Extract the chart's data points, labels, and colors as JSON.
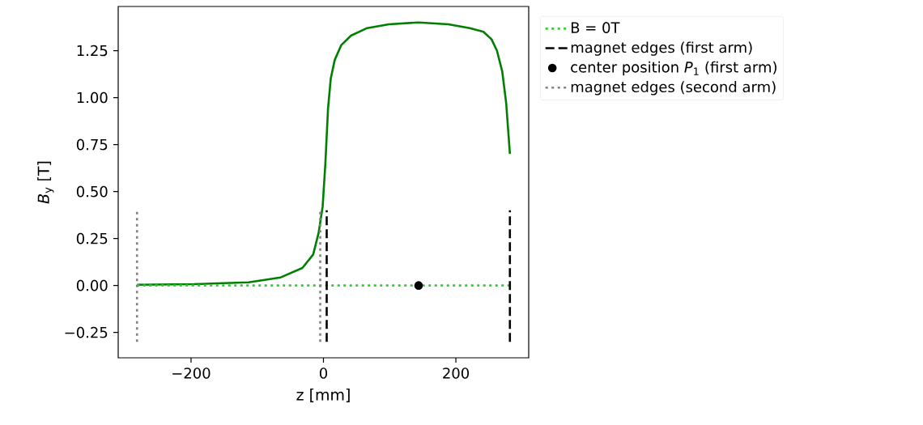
{
  "chart_data": {
    "type": "line",
    "xlabel": "z [mm]",
    "ylabel": "*B*$_{y}$ [T]",
    "xlim": [
      -310,
      310
    ],
    "ylim": [
      -0.385,
      1.485
    ],
    "xticks": [
      {
        "value": -200,
        "label": "−200"
      },
      0,
      200
    ],
    "yticks": [
      {
        "value": -0.25,
        "label": "−0.25"
      },
      {
        "value": 0,
        "label": "0.00"
      },
      {
        "value": 0.25,
        "label": "0.25"
      },
      {
        "value": 0.5,
        "label": "0.50"
      },
      {
        "value": 0.75,
        "label": "0.75"
      },
      {
        "value": 1,
        "label": "1.00"
      },
      {
        "value": 1.25,
        "label": "1.25"
      }
    ],
    "legend": "top right",
    "series": [
      {
        "color": "#008000",
        "line_style": "solid",
        "x": [
          -281.6,
          -195,
          -113,
          -64.5,
          -31.8,
          -15.5,
          -7.3,
          -1.2,
          2.9,
          6.9,
          11,
          17,
          27,
          41.6,
          66,
          98.8,
          143.7,
          188.6,
          221,
          241.6,
          253.9,
          262,
          270,
          276,
          281.6
        ],
        "values": [
          0.004,
          0.007,
          0.017,
          0.043,
          0.093,
          0.165,
          0.28,
          0.42,
          0.65,
          0.94,
          1.1,
          1.2,
          1.28,
          1.33,
          1.37,
          1.39,
          1.4,
          1.39,
          1.37,
          1.35,
          1.31,
          1.25,
          1.14,
          0.97,
          0.7
        ]
      },
      {
        "name": "B = 0T",
        "color": "#32cd32",
        "line_style": "dotted",
        "x": [
          -281.6,
          281.6
        ],
        "values": [
          0,
          0
        ]
      },
      {
        "name": "magnet edges (first arm)",
        "color": "#000000",
        "line_style": "dashed",
        "x": [
          4.9,
          4.9,
          null,
          281.6,
          281.6
        ],
        "values": [
          -0.3,
          0.4,
          null,
          -0.3,
          0.4
        ]
      },
      {
        "name": "center position *P*$_{1}$ (first arm)",
        "type": "scatter",
        "marker": "circle",
        "color": "#000000",
        "x": [
          143.7
        ],
        "values": [
          0
        ]
      },
      {
        "name": "magnet edges (second arm)",
        "color": "#808080",
        "line_style": "dotted",
        "x": [
          -281.6,
          -281.6,
          null,
          -4.9,
          -4.9
        ],
        "values": [
          -0.3,
          0.4,
          null,
          -0.3,
          0.4
        ]
      }
    ]
  }
}
